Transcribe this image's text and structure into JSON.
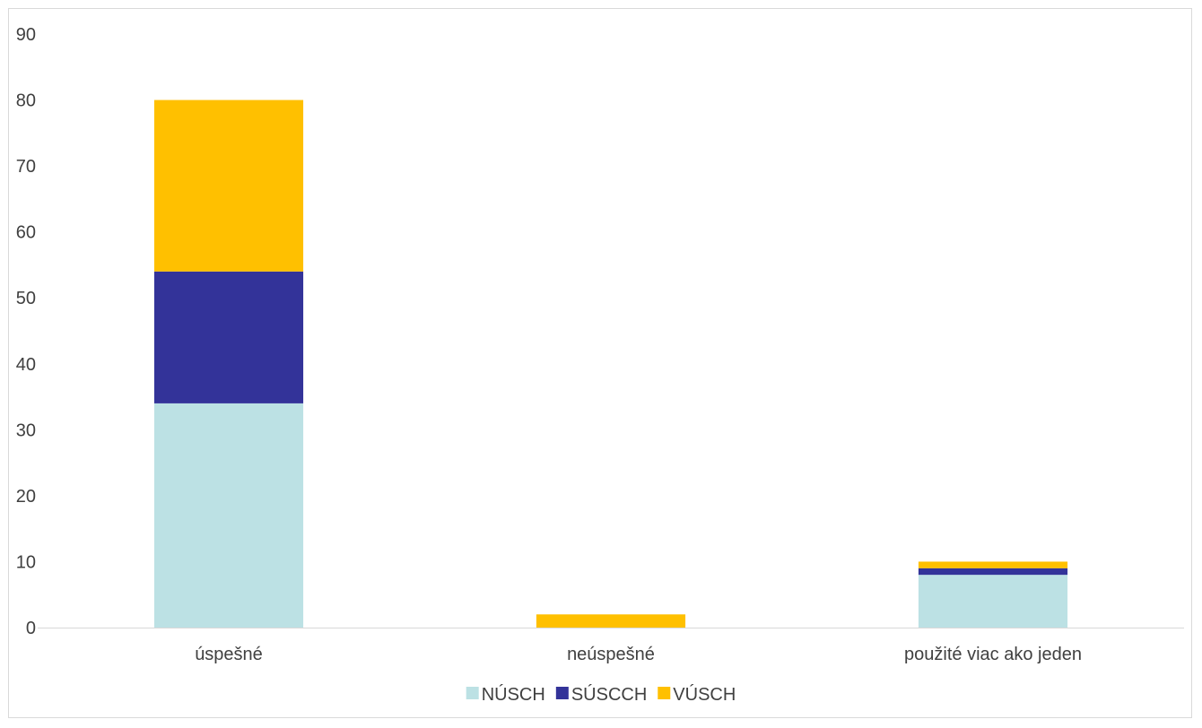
{
  "chart_data": {
    "type": "bar",
    "stacked": true,
    "categories": [
      "úspešné",
      "neúspešné",
      "použité viac ako jeden"
    ],
    "series": [
      {
        "name": "NÚSCH",
        "color": "#bce1e4",
        "values": [
          34,
          0,
          8
        ]
      },
      {
        "name": "SÚSCCH",
        "color": "#333399",
        "values": [
          20,
          0,
          1
        ]
      },
      {
        "name": "VÚSCH",
        "color": "#ffc000",
        "values": [
          26,
          2,
          1
        ]
      }
    ],
    "ylim": [
      0,
      90
    ],
    "yticks": [
      0,
      10,
      20,
      30,
      40,
      50,
      60,
      70,
      80,
      90
    ],
    "grid": false,
    "legend": "bottom",
    "title": "",
    "xlabel": "",
    "ylabel": ""
  }
}
